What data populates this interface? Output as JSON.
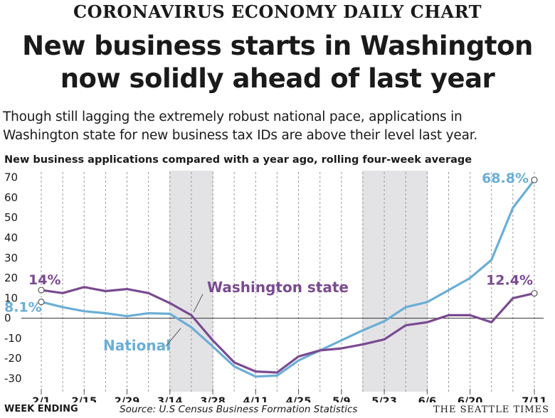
{
  "kicker": "CORONAVIRUS ECONOMY DAILY CHART",
  "headline": {
    "line1": "New business starts in Washington",
    "line2": "now solidly ahead of last year"
  },
  "dek": {
    "line1": "Though still lagging the extremely robust national pace, applications in",
    "line2": "Washington state for new business tax IDs are above their level last year."
  },
  "footer": {
    "week_ending": "WEEK ENDING",
    "source": "Source: U.S Census Business Formation Statistics",
    "credit": "THE SEATTLE TIMES"
  },
  "colors": {
    "national": "#6aaed6",
    "washington": "#7a4a91",
    "shade": "#e3e3e6"
  },
  "chart_data": {
    "type": "line",
    "title": "New business applications compared with a year ago, rolling four-week average",
    "x": [
      "2/1",
      "2/8",
      "2/15",
      "2/22",
      "2/29",
      "3/7",
      "3/14",
      "3/21",
      "3/28",
      "4/4",
      "4/11",
      "4/18",
      "4/25",
      "5/2",
      "5/9",
      "5/16",
      "5/23",
      "5/30",
      "6/6",
      "6/13",
      "6/20",
      "6/27",
      "7/4",
      "7/11"
    ],
    "x_tick_labels": [
      "2/1",
      "2/15",
      "2/29",
      "3/14",
      "3/28",
      "4/11",
      "4/25",
      "5/9",
      "5/23",
      "6/6",
      "6/20",
      "7/11"
    ],
    "ylim": [
      -33,
      72
    ],
    "y_ticks": [
      70,
      60,
      50,
      40,
      30,
      20,
      10,
      0,
      -10,
      -20,
      -30
    ],
    "grid": "dashed vertical at weekly x positions",
    "shaded_ranges": [
      [
        "3/14",
        "3/28"
      ],
      [
        "5/16",
        "6/6"
      ]
    ],
    "series": [
      {
        "name": "National",
        "values": [
          8.1,
          5.5,
          3.5,
          2.5,
          1.0,
          2.5,
          2.2,
          -4.5,
          -14,
          -24,
          -29,
          -28.5,
          -21,
          -16,
          -11,
          -6,
          -1.5,
          5.5,
          8,
          14,
          20,
          29,
          55,
          68.8
        ]
      },
      {
        "name": "Washington state",
        "values": [
          14,
          12.5,
          15.5,
          13.5,
          14.5,
          12.5,
          7.5,
          1.5,
          -11,
          -22,
          -26.5,
          -27,
          -19,
          -16,
          -15,
          -13,
          -10.5,
          -3.5,
          -2,
          1.5,
          1.5,
          -2,
          10,
          12.4
        ]
      }
    ],
    "annotations": {
      "national_start": "8.1%",
      "national_end": "68.8%",
      "washington_start": "14%",
      "washington_end": "12.4%",
      "national_label": "National",
      "washington_label": "Washington state"
    }
  }
}
